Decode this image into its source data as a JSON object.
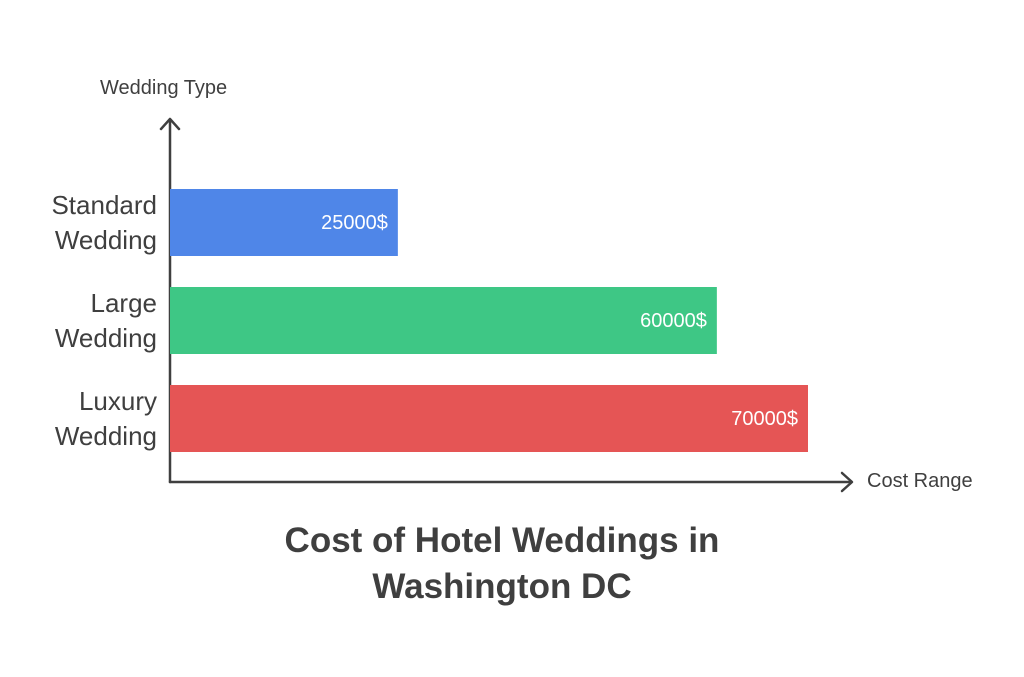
{
  "chart_data": {
    "type": "bar",
    "orientation": "horizontal",
    "title": "Cost of Hotel Weddings in Washington DC",
    "y_label": "Wedding Type",
    "x_label": "Cost Range",
    "categories": [
      "Standard Wedding",
      "Large Wedding",
      "Luxury Wedding"
    ],
    "values": [
      25000,
      60000,
      70000
    ],
    "value_labels": [
      "25000$",
      "60000$",
      "70000$"
    ],
    "colors": [
      "#4f86e8",
      "#3ec785",
      "#e55555"
    ]
  }
}
